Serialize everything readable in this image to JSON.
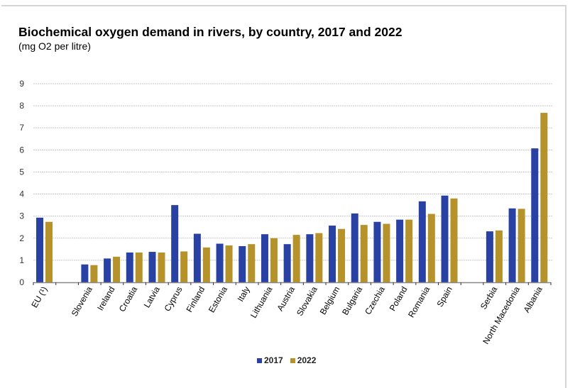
{
  "chart_data": {
    "type": "bar",
    "title": "Biochemical oxygen demand in rivers, by country, 2017 and 2022",
    "subtitle": "(mg  O2 per litre)",
    "xlabel": "",
    "ylabel": "",
    "ylim": [
      0,
      9
    ],
    "yticks": [
      "0",
      "1",
      "2",
      "3",
      "4",
      "5",
      "6",
      "7",
      "8",
      "9"
    ],
    "grid": true,
    "legend_position": "bottom-center",
    "categories": [
      "EU (¹)",
      "",
      "Slovenia",
      "Ireland",
      "Croatia",
      "Latvia",
      "Cyprus",
      "Finland",
      "Estonia",
      "Italy",
      "Lithuania",
      "Austria",
      "Slovakia",
      "Belgium",
      "Bulgaria",
      "Czechia",
      "Poland",
      "Romania",
      "Spain",
      "",
      "Serbia",
      "North Macedonia",
      "Albania"
    ],
    "series": [
      {
        "name": "2017",
        "color": "#2a41a4",
        "values": [
          2.93,
          null,
          0.81,
          1.08,
          1.35,
          1.38,
          3.5,
          2.2,
          1.75,
          1.64,
          2.18,
          1.73,
          2.18,
          2.57,
          3.12,
          2.74,
          2.84,
          3.67,
          3.93,
          null,
          2.31,
          3.35,
          6.07
        ]
      },
      {
        "name": "2022",
        "color": "#b5922a",
        "values": [
          2.74,
          null,
          0.78,
          1.16,
          1.35,
          1.35,
          1.4,
          1.58,
          1.67,
          1.73,
          2.0,
          2.15,
          2.23,
          2.42,
          2.6,
          2.65,
          2.84,
          3.1,
          3.8,
          null,
          2.35,
          3.33,
          7.68
        ]
      }
    ]
  }
}
